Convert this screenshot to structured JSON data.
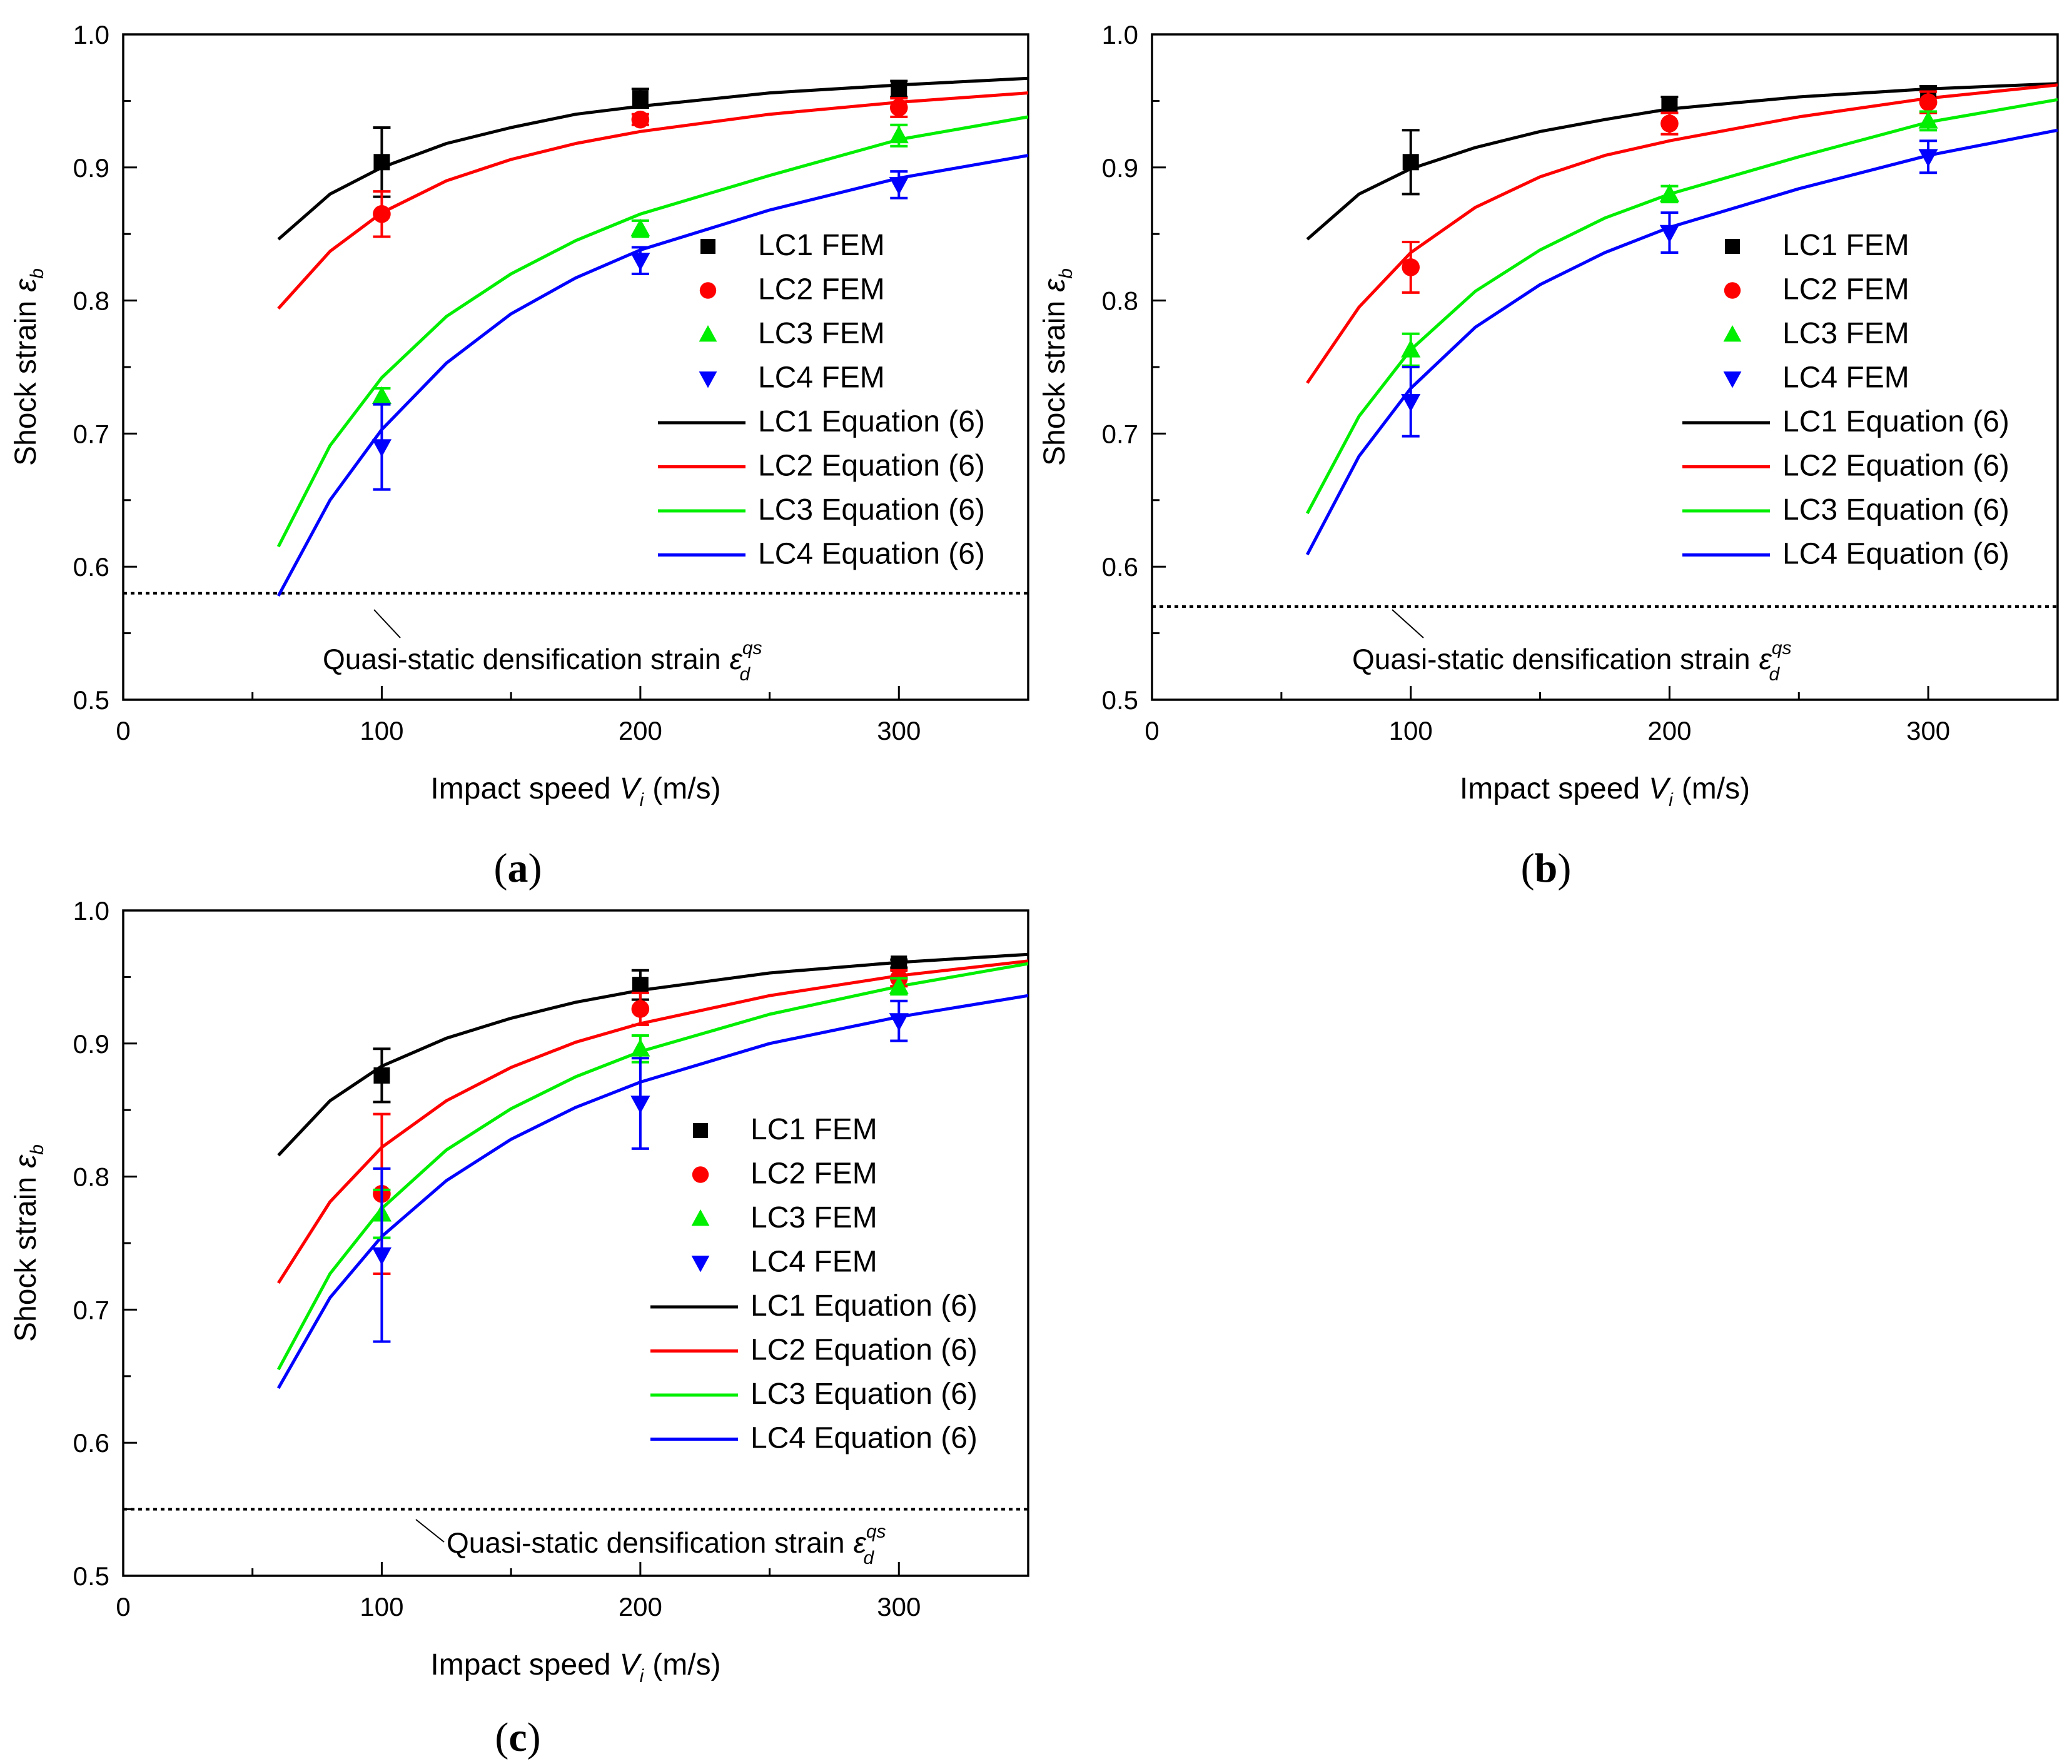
{
  "chart_data": [
    {
      "type": "scatter",
      "panel_label": "a",
      "xlabel": "Impact speed",
      "xlabel_var": "V",
      "xlabel_sub": "i",
      "xlabel_unit": "(m/s)",
      "ylabel": "Shock strain",
      "ylabel_var": "ε",
      "ylabel_sub": "b",
      "xlim": [
        0,
        350
      ],
      "ylim": [
        0.5,
        1.0
      ],
      "xticks": [
        0,
        100,
        200,
        300
      ],
      "yticks": [
        "0.5",
        "0.6",
        "0.7",
        "0.8",
        "0.9",
        "1.0"
      ],
      "densification_strain": 0.58,
      "note_text": "Quasi-static densification strain",
      "note_symbol": "ε",
      "note_sub": "d",
      "note_sup": "qs",
      "series": [
        {
          "name": "LC1 FEM",
          "marker": "square",
          "color": "#000000",
          "x": [
            100,
            200,
            300
          ],
          "y": [
            0.904,
            0.952,
            0.959
          ],
          "err": [
            0.026,
            0.007,
            0.006
          ]
        },
        {
          "name": "LC2 FEM",
          "marker": "circle",
          "color": "#ff0000",
          "x": [
            100,
            200,
            300
          ],
          "y": [
            0.865,
            0.936,
            0.945
          ],
          "err": [
            0.017,
            0.004,
            0.007
          ]
        },
        {
          "name": "LC3 FEM",
          "marker": "triangle-up",
          "color": "#00ee00",
          "x": [
            100,
            200,
            300
          ],
          "y": [
            0.728,
            0.854,
            0.924
          ],
          "err": [
            0.006,
            0.006,
            0.008
          ]
        },
        {
          "name": "LC4 FEM",
          "marker": "triangle-down",
          "color": "#0000ff",
          "x": [
            100,
            200,
            300
          ],
          "y": [
            0.69,
            0.83,
            0.887
          ],
          "err": [
            0.032,
            0.01,
            0.01
          ]
        }
      ],
      "curves": [
        {
          "name": "LC1 Equation (6)",
          "color": "#000000",
          "x": [
            60,
            80,
            100,
            125,
            150,
            175,
            200,
            250,
            300,
            350
          ],
          "y": [
            0.846,
            0.88,
            0.9,
            0.918,
            0.93,
            0.94,
            0.946,
            0.956,
            0.962,
            0.967
          ]
        },
        {
          "name": "LC2 Equation (6)",
          "color": "#ff0000",
          "x": [
            60,
            80,
            100,
            125,
            150,
            175,
            200,
            250,
            300,
            350
          ],
          "y": [
            0.794,
            0.837,
            0.866,
            0.89,
            0.906,
            0.918,
            0.927,
            0.94,
            0.949,
            0.956
          ]
        },
        {
          "name": "LC3 Equation (6)",
          "color": "#00ee00",
          "x": [
            60,
            80,
            100,
            125,
            150,
            175,
            200,
            250,
            300,
            350
          ],
          "y": [
            0.615,
            0.691,
            0.742,
            0.788,
            0.82,
            0.845,
            0.865,
            0.894,
            0.921,
            0.938
          ]
        },
        {
          "name": "LC4 Equation (6)",
          "color": "#0000ff",
          "x": [
            60,
            80,
            100,
            125,
            150,
            175,
            200,
            250,
            300,
            350
          ],
          "y": [
            0.578,
            0.65,
            0.703,
            0.753,
            0.79,
            0.817,
            0.838,
            0.868,
            0.892,
            0.909
          ]
        }
      ]
    },
    {
      "type": "scatter",
      "panel_label": "b",
      "xlabel": "Impact speed",
      "xlabel_var": "V",
      "xlabel_sub": "i",
      "xlabel_unit": "(m/s)",
      "ylabel": "Shock strain",
      "ylabel_var": "ε",
      "ylabel_sub": "b",
      "xlim": [
        0,
        350
      ],
      "ylim": [
        0.5,
        1.0
      ],
      "xticks": [
        0,
        100,
        200,
        300
      ],
      "yticks": [
        "0.5",
        "0.6",
        "0.7",
        "0.8",
        "0.9",
        "1.0"
      ],
      "densification_strain": 0.57,
      "note_text": "Quasi-static densification strain",
      "note_symbol": "ε",
      "note_sub": "d",
      "note_sup": "qs",
      "series": [
        {
          "name": "LC1 FEM",
          "marker": "square",
          "color": "#000000",
          "x": [
            100,
            200,
            300
          ],
          "y": [
            0.904,
            0.947,
            0.955
          ],
          "err": [
            0.024,
            0.006,
            0.006
          ]
        },
        {
          "name": "LC2 FEM",
          "marker": "circle",
          "color": "#ff0000",
          "x": [
            100,
            200,
            300
          ],
          "y": [
            0.825,
            0.933,
            0.949
          ],
          "err": [
            0.019,
            0.008,
            0.008
          ]
        },
        {
          "name": "LC3 FEM",
          "marker": "triangle-up",
          "color": "#00ee00",
          "x": [
            100,
            200,
            300
          ],
          "y": [
            0.763,
            0.88,
            0.935
          ],
          "err": [
            0.012,
            0.006,
            0.007
          ]
        },
        {
          "name": "LC4 FEM",
          "marker": "triangle-down",
          "color": "#0000ff",
          "x": [
            100,
            200,
            300
          ],
          "y": [
            0.724,
            0.851,
            0.908
          ],
          "err": [
            0.026,
            0.015,
            0.012
          ]
        }
      ],
      "curves": [
        {
          "name": "LC1 Equation (6)",
          "color": "#000000",
          "x": [
            60,
            80,
            100,
            125,
            150,
            175,
            200,
            250,
            300,
            350
          ],
          "y": [
            0.846,
            0.88,
            0.899,
            0.915,
            0.927,
            0.936,
            0.944,
            0.953,
            0.959,
            0.963
          ]
        },
        {
          "name": "LC2 Equation (6)",
          "color": "#ff0000",
          "x": [
            60,
            80,
            100,
            125,
            150,
            175,
            200,
            250,
            300,
            350
          ],
          "y": [
            0.738,
            0.795,
            0.836,
            0.87,
            0.893,
            0.909,
            0.92,
            0.938,
            0.952,
            0.962
          ]
        },
        {
          "name": "LC3 Equation (6)",
          "color": "#00ee00",
          "x": [
            60,
            80,
            100,
            125,
            150,
            175,
            200,
            250,
            300,
            350
          ],
          "y": [
            0.64,
            0.713,
            0.763,
            0.807,
            0.838,
            0.862,
            0.88,
            0.908,
            0.934,
            0.951
          ]
        },
        {
          "name": "LC4 Equation (6)",
          "color": "#0000ff",
          "x": [
            60,
            80,
            100,
            125,
            150,
            175,
            200,
            250,
            300,
            350
          ],
          "y": [
            0.609,
            0.683,
            0.734,
            0.78,
            0.812,
            0.836,
            0.855,
            0.884,
            0.909,
            0.928
          ]
        }
      ]
    },
    {
      "type": "scatter",
      "panel_label": "c",
      "xlabel": "Impact speed",
      "xlabel_var": "V",
      "xlabel_sub": "i",
      "xlabel_unit": "(m/s)",
      "ylabel": "Shock strain",
      "ylabel_var": "ε",
      "ylabel_sub": "b",
      "xlim": [
        0,
        350
      ],
      "ylim": [
        0.5,
        1.0
      ],
      "xticks": [
        0,
        100,
        200,
        300
      ],
      "yticks": [
        "0.5",
        "0.6",
        "0.7",
        "0.8",
        "0.9",
        "1.0"
      ],
      "densification_strain": 0.55,
      "note_text": "Quasi-static densification strain",
      "note_symbol": "ε",
      "note_sub": "d",
      "note_sup": "qs",
      "series": [
        {
          "name": "LC1 FEM",
          "marker": "square",
          "color": "#000000",
          "x": [
            100,
            200,
            300
          ],
          "y": [
            0.876,
            0.944,
            0.96
          ],
          "err": [
            0.02,
            0.011,
            0.003
          ]
        },
        {
          "name": "LC2 FEM",
          "marker": "circle",
          "color": "#ff0000",
          "x": [
            100,
            200,
            300
          ],
          "y": [
            0.787,
            0.926,
            0.949
          ],
          "err": [
            0.06,
            0.012,
            0.006
          ]
        },
        {
          "name": "LC3 FEM",
          "marker": "triangle-up",
          "color": "#00ee00",
          "x": [
            100,
            200,
            300
          ],
          "y": [
            0.772,
            0.896,
            0.943
          ],
          "err": [
            0.018,
            0.01,
            0.006
          ]
        },
        {
          "name": "LC4 FEM",
          "marker": "triangle-down",
          "color": "#0000ff",
          "x": [
            100,
            200,
            300
          ],
          "y": [
            0.741,
            0.855,
            0.917
          ],
          "err": [
            0.065,
            0.034,
            0.015
          ]
        }
      ],
      "curves": [
        {
          "name": "LC1 Equation (6)",
          "color": "#000000",
          "x": [
            60,
            80,
            100,
            125,
            150,
            175,
            200,
            250,
            300,
            350
          ],
          "y": [
            0.816,
            0.857,
            0.883,
            0.904,
            0.919,
            0.931,
            0.94,
            0.953,
            0.961,
            0.967
          ]
        },
        {
          "name": "LC2 Equation (6)",
          "color": "#ff0000",
          "x": [
            60,
            80,
            100,
            125,
            150,
            175,
            200,
            250,
            300,
            350
          ],
          "y": [
            0.72,
            0.781,
            0.822,
            0.857,
            0.882,
            0.901,
            0.915,
            0.936,
            0.951,
            0.962
          ]
        },
        {
          "name": "LC3 Equation (6)",
          "color": "#00ee00",
          "x": [
            60,
            80,
            100,
            125,
            150,
            175,
            200,
            250,
            300,
            350
          ],
          "y": [
            0.655,
            0.727,
            0.776,
            0.82,
            0.851,
            0.875,
            0.894,
            0.922,
            0.943,
            0.96
          ]
        },
        {
          "name": "LC4 Equation (6)",
          "color": "#0000ff",
          "x": [
            60,
            80,
            100,
            125,
            150,
            175,
            200,
            250,
            300,
            350
          ],
          "y": [
            0.641,
            0.709,
            0.755,
            0.797,
            0.828,
            0.852,
            0.871,
            0.9,
            0.92,
            0.936
          ]
        }
      ]
    }
  ]
}
